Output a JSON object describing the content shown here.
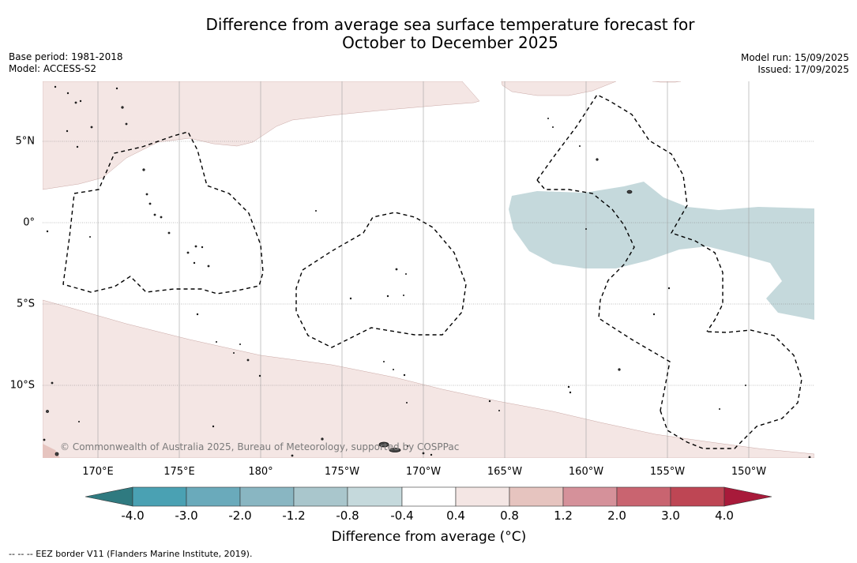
{
  "title": {
    "line1": "Difference from average sea surface temperature forecast for",
    "line2": "October to December 2025"
  },
  "meta_left": {
    "base_period": "Base period: 1981-2018",
    "model": "Model: ACCESS-S2"
  },
  "meta_right": {
    "model_run": "Model run: 15/09/2025",
    "issued": "Issued: 17/09/2025"
  },
  "copyright": "© Commonwealth of Australia 2025, Bureau of Meteorology, supported by COSPPac",
  "longitude_labels": [
    "170°E",
    "175°E",
    "180°",
    "175°W",
    "170°W",
    "165°W",
    "160°W",
    "155°W",
    "150°W"
  ],
  "latitude_labels": [
    "5°N",
    "0°",
    "5°S",
    "10°S"
  ],
  "colorbar": {
    "ticks": [
      "-4.0",
      "-3.0",
      "-2.0",
      "-1.2",
      "-0.8",
      "-0.4",
      "0.4",
      "0.8",
      "1.2",
      "2.0",
      "3.0",
      "4.0"
    ],
    "colors": [
      "#2f7a80",
      "#4aa1b3",
      "#6aaabb",
      "#89b6c2",
      "#a9c6cc",
      "#c5d9dc",
      "#ffffff",
      "#f4e6e4",
      "#e6c4bf",
      "#d5919a",
      "#c96470",
      "#be4654",
      "#a81a3a"
    ],
    "title": "Difference from average (°C)"
  },
  "legend_note": "-- -- -- EEZ border V11 (Flanders Marine Institute, 2019).",
  "map_colors": {
    "light_warm": "#f4e6e4",
    "warm_patch": "#e6c4bf",
    "cool": "#c5d9dc",
    "grid": "#808080"
  }
}
